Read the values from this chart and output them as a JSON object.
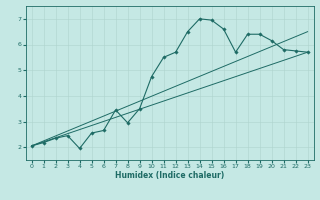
{
  "xlabel": "Humidex (Indice chaleur)",
  "xlim": [
    -0.5,
    23.5
  ],
  "ylim": [
    1.5,
    7.5
  ],
  "xticks": [
    0,
    1,
    2,
    3,
    4,
    5,
    6,
    7,
    8,
    9,
    10,
    11,
    12,
    13,
    14,
    15,
    16,
    17,
    18,
    19,
    20,
    21,
    22,
    23
  ],
  "yticks": [
    2,
    3,
    4,
    5,
    6,
    7
  ],
  "bg_color": "#c5e8e4",
  "line_color": "#1e6b65",
  "grid_color": "#afd4ce",
  "line1_x": [
    0,
    1,
    2,
    3,
    4,
    5,
    6,
    7,
    8,
    9,
    10,
    11,
    12,
    13,
    14,
    15,
    16,
    17,
    18,
    19,
    20,
    21,
    22,
    23
  ],
  "line1_y": [
    2.05,
    2.18,
    2.35,
    2.45,
    1.95,
    2.55,
    2.65,
    3.45,
    2.95,
    3.5,
    4.75,
    5.5,
    5.7,
    6.5,
    7.0,
    6.95,
    6.6,
    5.7,
    6.4,
    6.4,
    6.15,
    5.8,
    5.75,
    5.7
  ],
  "line2_x": [
    0,
    23
  ],
  "line2_y": [
    2.05,
    5.7
  ],
  "line3_x": [
    0,
    23
  ],
  "line3_y": [
    2.05,
    6.5
  ]
}
